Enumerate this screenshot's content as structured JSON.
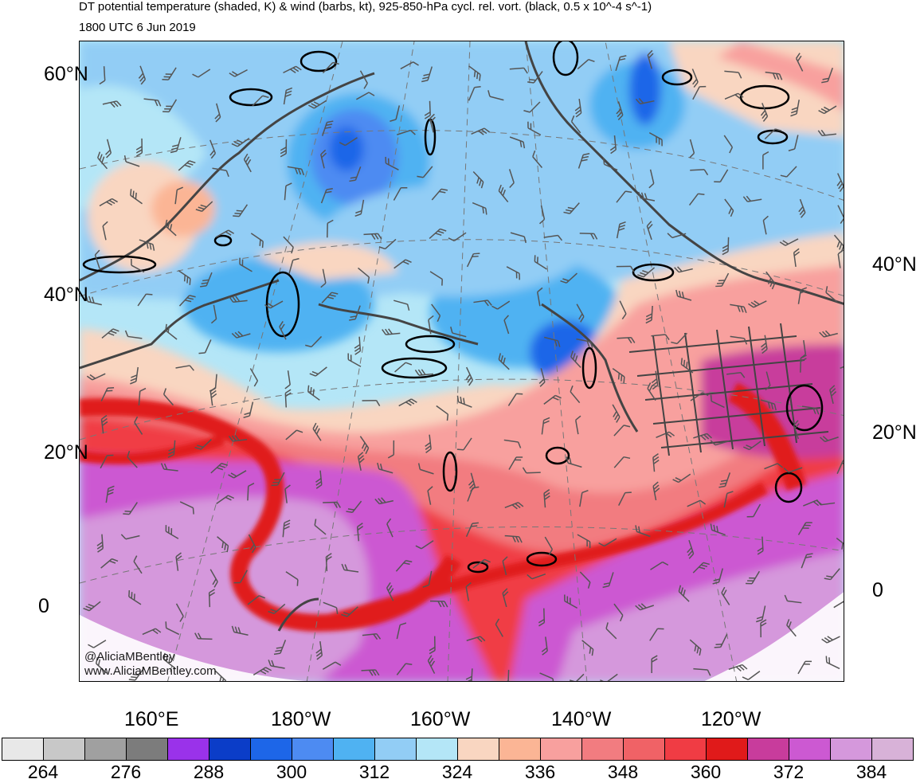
{
  "title": {
    "line1": "DT potential temperature (shaded, K) & wind (barbs, kt), 925-850-hPa cycl. rel. vort. (black, 0.5 x 10^-4 s^-1)",
    "line2": "1800 UTC 6 Jun 2019"
  },
  "map": {
    "left_lat_labels": [
      "60°N",
      "40°N",
      "20°N",
      "0"
    ],
    "right_lat_labels": [
      "40°N",
      "20°N",
      "0"
    ],
    "lon_labels": [
      "160°E",
      "180°W",
      "160°W",
      "140°W",
      "120°W"
    ],
    "credit_line1": "@AliciaMBentley",
    "credit_line2": "www.AliciaMBentley.com",
    "colors": {
      "contour": "#000000",
      "coastline": "#444444",
      "barb": "#555555",
      "grid": "#777777"
    }
  },
  "colorbar": {
    "colors": [
      "#e8e8e8",
      "#c8c8c8",
      "#a0a0a0",
      "#7c7c7c",
      "#9a32ea",
      "#0b3dc8",
      "#1d66e8",
      "#4d8bf2",
      "#4fb2f2",
      "#92cdf5",
      "#b4e6f7",
      "#f9d6c1",
      "#fbb595",
      "#f8a09e",
      "#f27c80",
      "#f06266",
      "#f03c44",
      "#e01a1a",
      "#c83c9c",
      "#cc59d2",
      "#d598dc",
      "#d8b2d8"
    ],
    "labels": [
      "264",
      "276",
      "288",
      "300",
      "312",
      "324",
      "336",
      "348",
      "360",
      "372",
      "384"
    ]
  }
}
